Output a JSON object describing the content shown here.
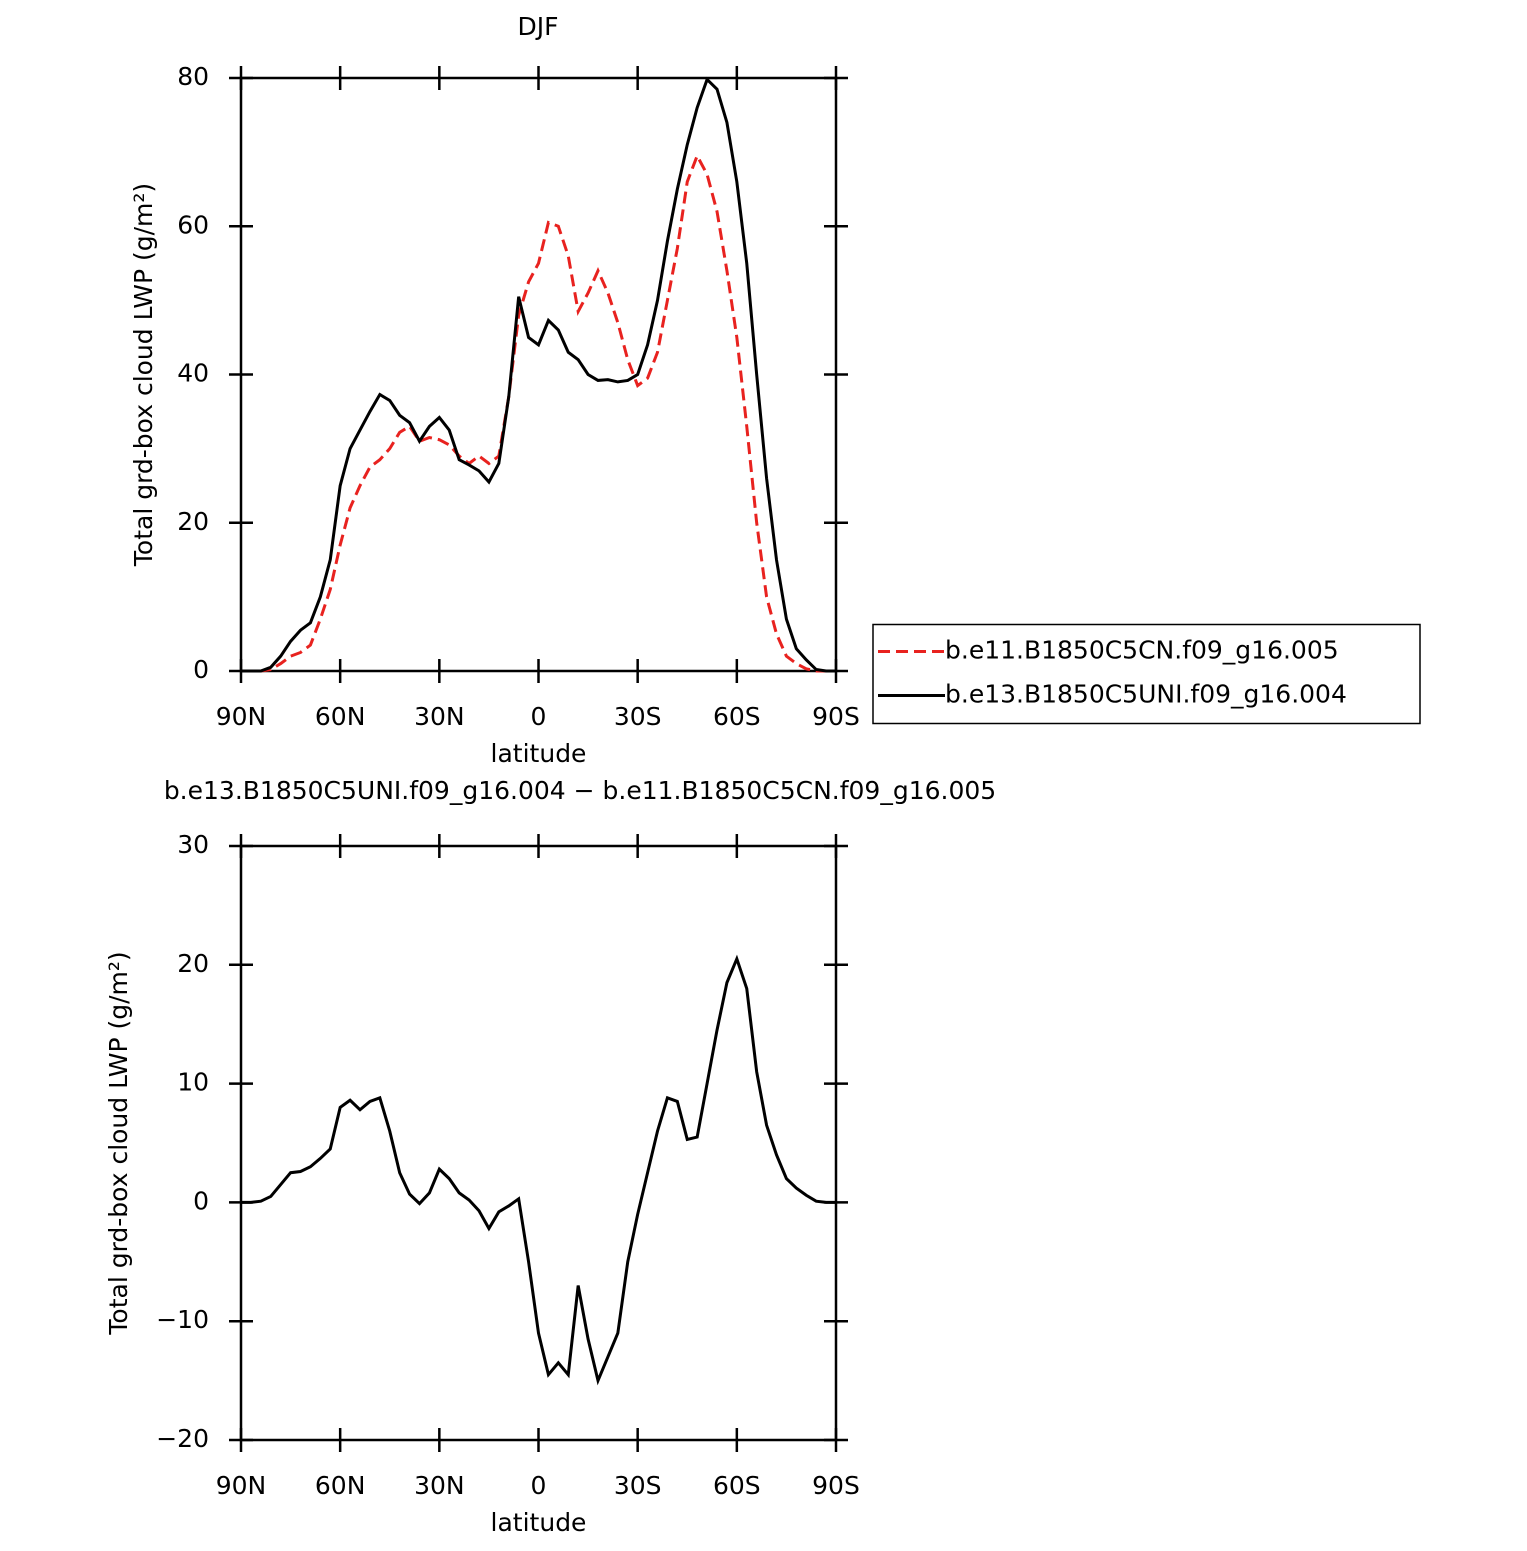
{
  "chart_data": [
    {
      "type": "line",
      "title": "DJF",
      "xlabel": "latitude",
      "ylabel": "Total grd-box cloud LWP (g/m²)",
      "x": [
        90,
        87,
        84,
        81,
        78,
        75,
        72,
        69,
        66,
        63,
        60,
        57,
        54,
        51,
        48,
        45,
        42,
        39,
        36,
        33,
        30,
        27,
        24,
        21,
        18,
        15,
        12,
        9,
        6,
        3,
        0,
        -3,
        -6,
        -9,
        -12,
        -15,
        -18,
        -21,
        -24,
        -27,
        -30,
        -33,
        -36,
        -39,
        -42,
        -45,
        -48,
        -51,
        -54,
        -57,
        -60,
        -63,
        -66,
        -69,
        -72,
        -75,
        -78,
        -81,
        -84,
        -87,
        -90
      ],
      "xlim": [
        90,
        -90
      ],
      "xticks": [
        {
          "value": 90,
          "label": "90N"
        },
        {
          "value": 60,
          "label": "60N"
        },
        {
          "value": 30,
          "label": "30N"
        },
        0,
        {
          "value": -30,
          "label": "30S"
        },
        {
          "value": -60,
          "label": "60S"
        },
        {
          "value": -90,
          "label": "90S"
        }
      ],
      "ylim": [
        0,
        80
      ],
      "yticks": [
        0,
        20,
        40,
        60,
        80
      ],
      "legend": "right",
      "series": [
        {
          "name": "b.e11.B1850C5CN.f09_g16.005",
          "color": "#e8221f",
          "dash": "dashed",
          "values": [
            0,
            0,
            0,
            0.2,
            1,
            2,
            2.5,
            3.5,
            7,
            11,
            17,
            22,
            25,
            27.5,
            28.5,
            30,
            32.2,
            33,
            31,
            31.5,
            31.2,
            30.5,
            29,
            28,
            29,
            28,
            29,
            37,
            48,
            52.5,
            55,
            60.5,
            60,
            56,
            48.5,
            51,
            54,
            51,
            47,
            42,
            38.5,
            39.5,
            43,
            50,
            57,
            66,
            69.5,
            67,
            62,
            54,
            45,
            33,
            20,
            10,
            5,
            2,
            1,
            0.3,
            0,
            0,
            0
          ]
        },
        {
          "name": "b.e13.B1850C5UNI.f09_g16.004",
          "color": "#000000",
          "dash": "solid",
          "values": [
            0,
            0,
            0,
            0.5,
            2,
            4,
            5.5,
            6.5,
            10,
            15,
            25,
            30,
            32.5,
            35,
            37.3,
            36.5,
            34.5,
            33.5,
            31,
            33,
            34.2,
            32.5,
            28.5,
            27.8,
            27,
            25.5,
            28,
            37,
            50.5,
            45,
            44,
            47.3,
            46,
            43,
            42,
            40,
            39.2,
            39.3,
            39,
            39.2,
            40,
            44,
            50,
            58,
            65,
            71,
            76,
            79.8,
            78.5,
            74,
            66,
            55,
            40,
            26,
            15,
            7,
            3,
            1.5,
            0.2,
            0,
            0
          ]
        }
      ]
    },
    {
      "type": "line",
      "title": "b.e13.B1850C5UNI.f09_g16.004 − b.e11.B1850C5CN.f09_g16.005",
      "xlabel": "latitude",
      "ylabel": "Total grd-box cloud LWP (g/m²)",
      "x": [
        90,
        87,
        84,
        81,
        78,
        75,
        72,
        69,
        66,
        63,
        60,
        57,
        54,
        51,
        48,
        45,
        42,
        39,
        36,
        33,
        30,
        27,
        24,
        21,
        18,
        15,
        12,
        9,
        6,
        3,
        0,
        -3,
        -6,
        -9,
        -12,
        -15,
        -18,
        -21,
        -24,
        -27,
        -30,
        -33,
        -36,
        -39,
        -42,
        -45,
        -48,
        -51,
        -54,
        -57,
        -60,
        -63,
        -66,
        -69,
        -72,
        -75,
        -78,
        -81,
        -84,
        -87,
        -90
      ],
      "xlim": [
        90,
        -90
      ],
      "xticks": [
        {
          "value": 90,
          "label": "90N"
        },
        {
          "value": 60,
          "label": "60N"
        },
        {
          "value": 30,
          "label": "30N"
        },
        0,
        {
          "value": -30,
          "label": "30S"
        },
        {
          "value": -60,
          "label": "60S"
        },
        {
          "value": -90,
          "label": "90S"
        }
      ],
      "ylim": [
        -20,
        30
      ],
      "yticks": [
        {
          "value": -20,
          "label": "−20"
        },
        {
          "value": -10,
          "label": "−10"
        },
        0,
        10,
        20,
        30
      ],
      "series": [
        {
          "color": "#000000",
          "dash": "solid",
          "values": [
            0,
            0,
            0.1,
            0.5,
            1.5,
            2.5,
            2.6,
            3,
            3.7,
            4.5,
            8,
            8.6,
            7.8,
            8.5,
            8.8,
            6,
            2.5,
            0.7,
            -0.1,
            0.8,
            2.8,
            2,
            0.8,
            0.2,
            -0.7,
            -2.2,
            -0.8,
            -0.3,
            0.3,
            -5,
            -11,
            -14.5,
            -13.5,
            -14.5,
            -7,
            -11.5,
            -15,
            -13,
            -11,
            -5,
            -1,
            2.5,
            6,
            8.8,
            8.5,
            5.3,
            5.5,
            10,
            14.5,
            18.5,
            20.5,
            18,
            11,
            6.5,
            4,
            2,
            1.2,
            0.6,
            0.1,
            0,
            0
          ]
        }
      ]
    }
  ]
}
